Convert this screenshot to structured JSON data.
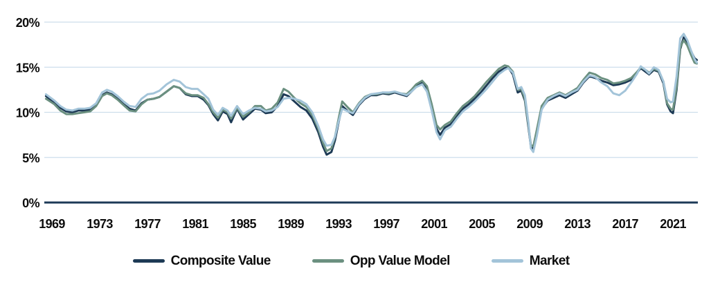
{
  "chart": {
    "gridline_color": "#cddeeb",
    "zero_axis_color": "#1c3a57",
    "text_color": "#0d0d0d",
    "background": "#ffffff"
  },
  "chart_data": {
    "type": "line",
    "title": "",
    "xlabel": "",
    "ylabel": "",
    "grid": "horizontal",
    "legend_position": "bottom",
    "ylim": [
      0,
      20
    ],
    "xlim": [
      1968.36,
      2023.08
    ],
    "x_ticks": [
      1969,
      1973,
      1977,
      1981,
      1985,
      1989,
      1993,
      1997,
      2001,
      2005,
      2009,
      2013,
      2017,
      2021
    ],
    "y_ticks": [
      {
        "value": 0,
        "label": "0%"
      },
      {
        "value": 5,
        "label": "5%"
      },
      {
        "value": 10,
        "label": "10%"
      },
      {
        "value": 15,
        "label": "15%"
      },
      {
        "value": 20,
        "label": "20%"
      }
    ],
    "x": [
      1968.5,
      1969.2,
      1969.7,
      1970.2,
      1970.7,
      1971.2,
      1971.7,
      1972.2,
      1972.7,
      1973.2,
      1973.6,
      1974,
      1974.5,
      1975,
      1975.5,
      1976,
      1976.5,
      1977,
      1977.5,
      1978,
      1978.6,
      1979.2,
      1979.7,
      1980.2,
      1980.7,
      1981.2,
      1981.7,
      1982.1,
      1982.5,
      1982.9,
      1983.3,
      1983.7,
      1984,
      1984.5,
      1985,
      1985.5,
      1986,
      1986.5,
      1986.9,
      1987.4,
      1987.9,
      1988.4,
      1988.8,
      1989.3,
      1989.8,
      1990.3,
      1990.8,
      1991.3,
      1991.7,
      1992,
      1992.4,
      1992.7,
      1993,
      1993.3,
      1993.8,
      1994.2,
      1994.7,
      1995.2,
      1995.7,
      1996.2,
      1996.7,
      1997.2,
      1997.7,
      1998.2,
      1998.7,
      1999.1,
      1999.5,
      2000,
      2000.4,
      2000.8,
      2001.2,
      2001.5,
      2001.9,
      2002.4,
      2002.9,
      2003.4,
      2003.9,
      2004.4,
      2004.9,
      2005.4,
      2005.9,
      2006.4,
      2006.9,
      2007.2,
      2007.6,
      2008,
      2008.3,
      2008.6,
      2008.9,
      2009.1,
      2009.3,
      2009.6,
      2010,
      2010.5,
      2011,
      2011.5,
      2012,
      2012.5,
      2013,
      2013.5,
      2014,
      2014.5,
      2015,
      2015.5,
      2016,
      2016.5,
      2017,
      2017.5,
      2018,
      2018.3,
      2018.7,
      2019,
      2019.4,
      2019.8,
      2020.2,
      2020.5,
      2020.8,
      2021,
      2021.3,
      2021.6,
      2021.9,
      2022.2,
      2022.5,
      2022.8,
      2023
    ],
    "series": [
      {
        "name": "Composite Value",
        "color": "#1d3a55",
        "values": [
          11.8,
          11.1,
          10.5,
          10.1,
          10,
          10.2,
          10.2,
          10.3,
          10.8,
          11.9,
          12.2,
          12,
          11.5,
          10.9,
          10.4,
          10.2,
          11,
          11.4,
          11.5,
          11.7,
          12.3,
          12.9,
          12.7,
          12,
          11.8,
          11.8,
          11.4,
          10.8,
          9.8,
          9.1,
          10.1,
          9.8,
          8.9,
          10.4,
          9.2,
          9.8,
          10.4,
          10.3,
          9.9,
          10,
          10.7,
          12,
          11.8,
          11.2,
          10.6,
          10.2,
          9.3,
          7.8,
          6.2,
          5.3,
          5.6,
          6.9,
          8.9,
          10.7,
          10.1,
          9.7,
          10.8,
          11.5,
          11.9,
          11.9,
          12.1,
          12,
          12.2,
          12,
          11.8,
          12.3,
          12.9,
          13.3,
          12.6,
          10.5,
          8.2,
          7.5,
          8.3,
          8.7,
          9.6,
          10.4,
          10.9,
          11.5,
          12.2,
          13,
          13.8,
          14.5,
          14.9,
          15,
          14.2,
          12.2,
          12.4,
          11.3,
          8.3,
          6.2,
          6,
          7.8,
          10.4,
          11.3,
          11.6,
          11.9,
          11.6,
          12,
          12.4,
          13.3,
          14,
          13.8,
          13.5,
          13.3,
          13,
          13.1,
          13.3,
          13.6,
          14.4,
          14.9,
          14.5,
          14.2,
          14.7,
          14.5,
          13.2,
          10.9,
          10.1,
          9.9,
          12.5,
          17,
          18.3,
          17.7,
          16.8,
          16,
          15.8
        ]
      },
      {
        "name": "Opp Value Model",
        "color": "#6b9080",
        "values": [
          11.5,
          10.9,
          10.2,
          9.8,
          9.8,
          9.9,
          10,
          10.1,
          10.7,
          11.8,
          12.1,
          11.9,
          11.4,
          10.8,
          10.2,
          10.1,
          10.9,
          11.4,
          11.5,
          11.7,
          12.3,
          12.9,
          12.7,
          12.1,
          11.9,
          11.9,
          11.6,
          10.9,
          10,
          9.4,
          10.3,
          10,
          9.3,
          10.5,
          9.5,
          10,
          10.7,
          10.7,
          10.2,
          10.4,
          11.1,
          12.6,
          12.3,
          11.6,
          11,
          10.6,
          9.7,
          8.2,
          6.6,
          5.7,
          6,
          7.3,
          9.3,
          11.2,
          10.5,
          10,
          11,
          11.7,
          12,
          12,
          12.2,
          12.1,
          12.3,
          12.1,
          12,
          12.5,
          13.1,
          13.5,
          12.9,
          10.9,
          8.6,
          8.1,
          8.6,
          9,
          9.9,
          10.7,
          11.2,
          11.8,
          12.6,
          13.4,
          14.1,
          14.8,
          15.2,
          15.1,
          14.5,
          12.5,
          12.6,
          11.5,
          8.5,
          6.4,
          6.2,
          8.1,
          10.7,
          11.6,
          11.9,
          12.2,
          11.9,
          12.3,
          12.7,
          13.6,
          14.4,
          14.2,
          13.8,
          13.6,
          13.2,
          13.3,
          13.5,
          13.8,
          14.5,
          15,
          14.7,
          14.4,
          14.8,
          14.6,
          13.4,
          11,
          10.4,
          10.3,
          12.8,
          17.2,
          18,
          17.4,
          16.4,
          15.5,
          15.4
        ]
      },
      {
        "name": "Market",
        "color": "#a3c4d9",
        "values": [
          12,
          11.3,
          10.7,
          10.3,
          10.2,
          10.4,
          10.4,
          10.5,
          11,
          12.2,
          12.5,
          12.3,
          11.8,
          11.2,
          10.7,
          10.6,
          11.5,
          12,
          12.1,
          12.4,
          13.1,
          13.6,
          13.4,
          12.8,
          12.6,
          12.6,
          12,
          11.5,
          10.3,
          9.7,
          10.5,
          10.2,
          9.6,
          10.7,
          9.8,
          10.2,
          10.5,
          10.4,
          10.1,
          10.2,
          10.6,
          11.5,
          11.6,
          11.5,
          11.3,
          10.9,
          10,
          8.5,
          7,
          6.3,
          6.4,
          7.3,
          9,
          10.4,
          10.1,
          9.9,
          10.9,
          11.6,
          12,
          12.1,
          12.2,
          12.2,
          12.3,
          12.1,
          11.9,
          12.3,
          12.8,
          13.1,
          12.3,
          10.2,
          7.8,
          7,
          8,
          8.4,
          9.3,
          10.1,
          10.6,
          11.2,
          11.9,
          12.6,
          13.4,
          14.2,
          14.7,
          14.9,
          14.4,
          12.6,
          12.8,
          11.9,
          8.8,
          6,
          5.6,
          7.4,
          10.3,
          11.4,
          11.8,
          12.1,
          11.8,
          12.2,
          12.5,
          13.4,
          14.1,
          13.9,
          13.3,
          12.9,
          12.1,
          11.9,
          12.4,
          13.3,
          14.3,
          15.1,
          14.7,
          14.3,
          15,
          14.7,
          13.4,
          11.5,
          11.1,
          11.2,
          14,
          18.2,
          18.7,
          18,
          16.9,
          15.9,
          15.5
        ]
      }
    ]
  },
  "legend": {
    "items": [
      {
        "label": "Composite Value",
        "color": "#1d3a55"
      },
      {
        "label": "Opp Value Model",
        "color": "#6b9080"
      },
      {
        "label": "Market",
        "color": "#a3c4d9"
      }
    ]
  }
}
